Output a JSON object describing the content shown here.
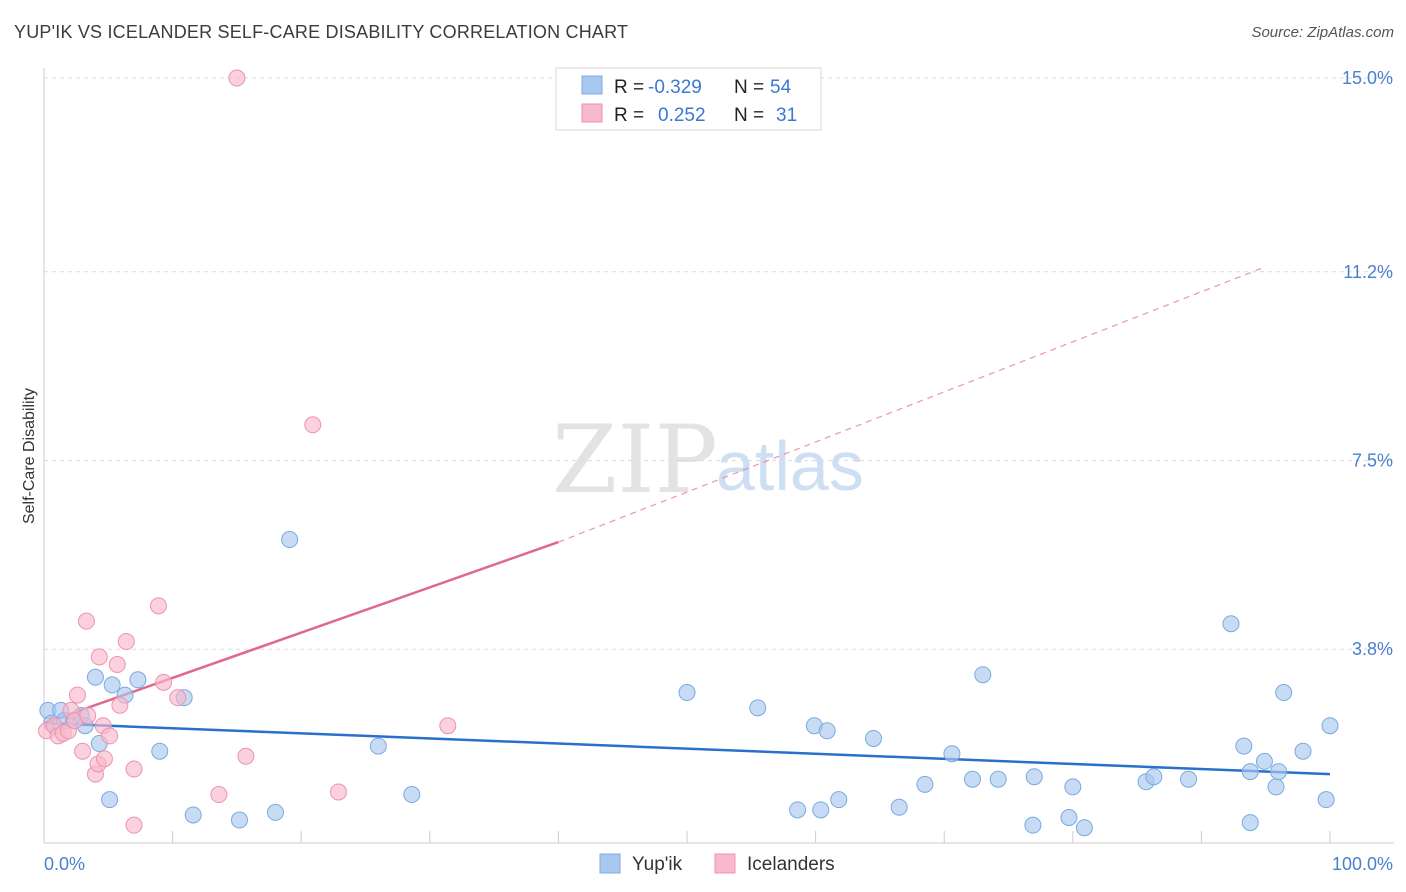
{
  "header": {
    "title": "YUP'IK VS ICELANDER SELF-CARE DISABILITY CORRELATION CHART",
    "source": "Source: ZipAtlas.com"
  },
  "watermark": {
    "zip": "ZIP",
    "atlas": "atlas"
  },
  "colors": {
    "blue_fill": "#a9c8f0",
    "blue_stroke": "#7aaae0",
    "blue_line": "#2a6fcc",
    "pink_fill": "#f7b9cb",
    "pink_stroke": "#ee93b0",
    "pink_line": "#e06890",
    "grid": "#dcdcdc",
    "tick_label": "#4a7fcf",
    "stat_value": "#3a78d4"
  },
  "stats": {
    "rows": [
      {
        "r_label": "R =",
        "r_value": "-0.329",
        "n_label": "N =",
        "n_value": "54"
      },
      {
        "r_label": "R =",
        "r_value": "0.252",
        "n_label": "N =",
        "n_value": "31"
      }
    ]
  },
  "legend": {
    "items": [
      "Yup'ik",
      "Icelanders"
    ]
  },
  "chart_data": {
    "type": "scatter",
    "title": "YUP'IK VS ICELANDER SELF-CARE DISABILITY CORRELATION CHART",
    "xlabel": "",
    "ylabel": "Self-Care Disability",
    "xlim": [
      0,
      100
    ],
    "ylim": [
      0,
      15.0
    ],
    "x_tick_labels": [
      "0.0%",
      "100.0%"
    ],
    "y_ticks": [
      3.8,
      7.5,
      11.2,
      15.0
    ],
    "y_tick_labels": [
      "3.8%",
      "7.5%",
      "11.2%",
      "15.0%"
    ],
    "legend_position": "bottom-center",
    "series": [
      {
        "name": "Yup'ik",
        "color": "#a9c8f0",
        "trend": {
          "x": [
            0,
            100
          ],
          "y": [
            2.35,
            1.35
          ],
          "style": "solid"
        },
        "points": [
          [
            0.3,
            2.6
          ],
          [
            0.6,
            2.35
          ],
          [
            1.3,
            2.6
          ],
          [
            1.6,
            2.4
          ],
          [
            2.3,
            2.4
          ],
          [
            2.9,
            2.5
          ],
          [
            3.2,
            2.3
          ],
          [
            4.0,
            3.25
          ],
          [
            4.3,
            1.95
          ],
          [
            5.1,
            0.85
          ],
          [
            5.3,
            3.1
          ],
          [
            6.3,
            2.9
          ],
          [
            7.3,
            3.2
          ],
          [
            9.0,
            1.8
          ],
          [
            10.9,
            2.85
          ],
          [
            11.6,
            0.55
          ],
          [
            15.2,
            0.45
          ],
          [
            18.0,
            0.6
          ],
          [
            19.1,
            5.95
          ],
          [
            26.0,
            1.9
          ],
          [
            28.6,
            0.95
          ],
          [
            50.0,
            2.95
          ],
          [
            55.5,
            2.65
          ],
          [
            58.6,
            0.65
          ],
          [
            59.9,
            2.3
          ],
          [
            60.4,
            0.65
          ],
          [
            60.9,
            2.2
          ],
          [
            61.8,
            0.85
          ],
          [
            64.5,
            2.05
          ],
          [
            66.5,
            0.7
          ],
          [
            68.5,
            1.15
          ],
          [
            70.6,
            1.75
          ],
          [
            72.2,
            1.25
          ],
          [
            73.0,
            3.3
          ],
          [
            74.2,
            1.25
          ],
          [
            76.9,
            0.35
          ],
          [
            77.0,
            1.3
          ],
          [
            79.7,
            0.5
          ],
          [
            80.0,
            1.1
          ],
          [
            80.9,
            0.3
          ],
          [
            85.7,
            1.2
          ],
          [
            86.3,
            1.3
          ],
          [
            89.0,
            1.25
          ],
          [
            92.3,
            4.3
          ],
          [
            93.3,
            1.9
          ],
          [
            93.8,
            1.4
          ],
          [
            93.8,
            0.4
          ],
          [
            94.9,
            1.6
          ],
          [
            95.8,
            1.1
          ],
          [
            96.0,
            1.4
          ],
          [
            96.4,
            2.95
          ],
          [
            97.9,
            1.8
          ],
          [
            99.7,
            0.85
          ],
          [
            100.0,
            2.3
          ]
        ]
      },
      {
        "name": "Icelanders",
        "color": "#f7b9cb",
        "trend": {
          "x": [
            0,
            40
          ],
          "y": [
            2.35,
            5.9
          ],
          "dashed_to": [
            95,
            11.3
          ],
          "style": "solid-then-dashed"
        },
        "points": [
          [
            0.2,
            2.2
          ],
          [
            0.8,
            2.3
          ],
          [
            1.1,
            2.1
          ],
          [
            1.5,
            2.15
          ],
          [
            1.9,
            2.2
          ],
          [
            2.1,
            2.6
          ],
          [
            2.4,
            2.4
          ],
          [
            2.6,
            2.9
          ],
          [
            3.0,
            1.8
          ],
          [
            3.3,
            4.35
          ],
          [
            3.4,
            2.5
          ],
          [
            4.0,
            1.35
          ],
          [
            4.2,
            1.55
          ],
          [
            4.3,
            3.65
          ],
          [
            4.6,
            2.3
          ],
          [
            4.7,
            1.65
          ],
          [
            5.1,
            2.1
          ],
          [
            5.7,
            3.5
          ],
          [
            5.9,
            2.7
          ],
          [
            6.4,
            3.95
          ],
          [
            7.0,
            1.45
          ],
          [
            7.0,
            0.35
          ],
          [
            8.9,
            4.65
          ],
          [
            9.3,
            3.15
          ],
          [
            10.4,
            2.85
          ],
          [
            13.6,
            0.95
          ],
          [
            15.0,
            15.0
          ],
          [
            15.7,
            1.7
          ],
          [
            20.9,
            8.2
          ],
          [
            22.9,
            1.0
          ],
          [
            31.4,
            2.3
          ]
        ]
      }
    ]
  }
}
